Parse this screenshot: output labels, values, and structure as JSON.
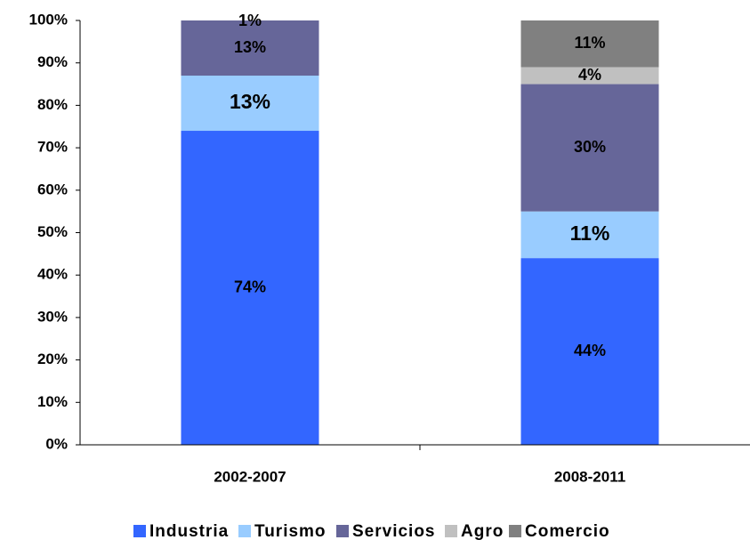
{
  "chart_data": {
    "type": "stacked_bar",
    "categories": [
      "2002-2007",
      "2008-2011"
    ],
    "series": [
      {
        "name": "Industria",
        "color": "#3366ff",
        "values": [
          74,
          44
        ],
        "value_labels": [
          "74%",
          "44%"
        ]
      },
      {
        "name": "Turismo",
        "color": "#99ccff",
        "values": [
          13,
          11
        ],
        "value_labels": [
          "13%",
          "11%"
        ]
      },
      {
        "name": "Servicios",
        "color": "#666699",
        "values": [
          13,
          30
        ],
        "value_labels": [
          "13%",
          "30%"
        ]
      },
      {
        "name": "Agro",
        "color": "#c0c0c0",
        "values": [
          1,
          4
        ],
        "value_labels": [
          "1%",
          "4%"
        ]
      },
      {
        "name": "Comercio",
        "color": "#808080",
        "values": [
          null,
          11
        ],
        "value_labels": [
          null,
          "11%"
        ]
      }
    ],
    "ylim": [
      0,
      100
    ],
    "yticks": [
      {
        "value": 0,
        "label": "0%"
      },
      {
        "value": 10,
        "label": "10%"
      },
      {
        "value": 20,
        "label": "20%"
      },
      {
        "value": 30,
        "label": "30%"
      },
      {
        "value": 40,
        "label": "40%"
      },
      {
        "value": 50,
        "label": "50%"
      },
      {
        "value": 60,
        "label": "60%"
      },
      {
        "value": 70,
        "label": "70%"
      },
      {
        "value": 80,
        "label": "80%"
      },
      {
        "value": 90,
        "label": "90%"
      },
      {
        "value": 100,
        "label": "100%"
      }
    ],
    "legend": "bottom"
  }
}
